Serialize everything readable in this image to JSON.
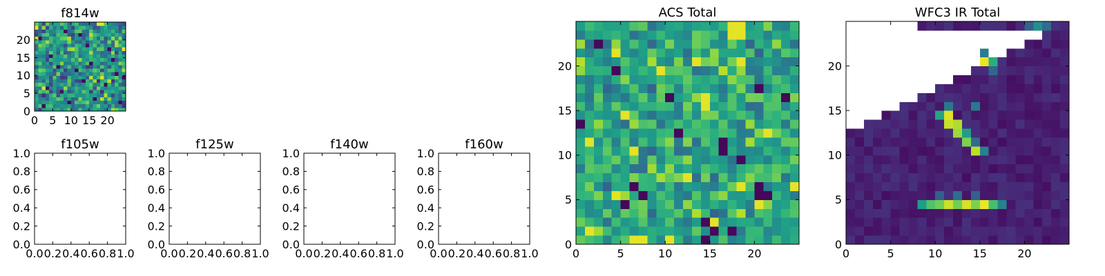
{
  "figure": {
    "background": "#ffffff",
    "colormap_name": "viridis",
    "empty_cell_color": "#ffffff"
  },
  "chart_data": [
    {
      "id": "f814w",
      "type": "heatmap",
      "title": "f814w",
      "size": [
        25,
        25
      ],
      "xlim": [
        0,
        25
      ],
      "ylim": [
        0,
        25
      ],
      "xticks": [
        0,
        5,
        10,
        15,
        20
      ],
      "yticks": [
        0,
        5,
        10,
        15,
        20
      ],
      "pattern": "noise",
      "seed": 814,
      "value_range": [
        0.1,
        0.95
      ],
      "bright_spots": [
        [
          17,
          24
        ],
        [
          18,
          24
        ],
        [
          24,
          17
        ],
        [
          0,
          23
        ]
      ],
      "dark_spots": [
        [
          13,
          8
        ],
        [
          7,
          5
        ],
        [
          16,
          3
        ],
        [
          4,
          15
        ],
        [
          1,
          20
        ],
        [
          11,
          11
        ],
        [
          22,
          10
        ],
        [
          15,
          13
        ],
        [
          20,
          17
        ],
        [
          9,
          2
        ],
        [
          3,
          6
        ],
        [
          24,
          9
        ],
        [
          12,
          21
        ],
        [
          19,
          7
        ],
        [
          6,
          12
        ],
        [
          23,
          2
        ],
        [
          2,
          1
        ],
        [
          14,
          18
        ],
        [
          8,
          22
        ],
        [
          21,
          14
        ]
      ]
    },
    {
      "id": "f105w",
      "type": "empty",
      "title": "f105w",
      "xlim": [
        0.0,
        1.0
      ],
      "ylim": [
        0.0,
        1.0
      ],
      "xticks": [
        "0.0",
        "0.2",
        "0.4",
        "0.6",
        "0.8",
        "1.0"
      ],
      "yticks": [
        "0.0",
        "0.2",
        "0.4",
        "0.6",
        "0.8",
        "1.0"
      ]
    },
    {
      "id": "f125w",
      "type": "empty",
      "title": "f125w",
      "xlim": [
        0.0,
        1.0
      ],
      "ylim": [
        0.0,
        1.0
      ],
      "xticks": [
        "0.0",
        "0.2",
        "0.4",
        "0.6",
        "0.8",
        "1.0"
      ],
      "yticks": [
        "0.0",
        "0.2",
        "0.4",
        "0.6",
        "0.8",
        "1.0"
      ]
    },
    {
      "id": "f140w",
      "type": "empty",
      "title": "f140w",
      "xlim": [
        0.0,
        1.0
      ],
      "ylim": [
        0.0,
        1.0
      ],
      "xticks": [
        "0.0",
        "0.2",
        "0.4",
        "0.6",
        "0.8",
        "1.0"
      ],
      "yticks": [
        "0.0",
        "0.2",
        "0.4",
        "0.6",
        "0.8",
        "1.0"
      ]
    },
    {
      "id": "f160w",
      "type": "empty",
      "title": "f160w",
      "xlim": [
        0.0,
        1.0
      ],
      "ylim": [
        0.0,
        1.0
      ],
      "xticks": [
        "0.0",
        "0.2",
        "0.4",
        "0.6",
        "0.8",
        "1.0"
      ],
      "yticks": [
        "0.0",
        "0.2",
        "0.4",
        "0.6",
        "0.8",
        "1.0"
      ]
    },
    {
      "id": "acs-total",
      "type": "heatmap",
      "title": "ACS Total",
      "size": [
        25,
        25
      ],
      "xlim": [
        0,
        25
      ],
      "ylim": [
        0,
        25
      ],
      "xticks": [
        0,
        5,
        10,
        15,
        20
      ],
      "yticks": [
        0,
        5,
        10,
        15,
        20
      ],
      "pattern": "noise",
      "seed": 2024,
      "value_range": [
        0.3,
        0.9
      ],
      "bright_spots": [
        [
          17,
          23
        ],
        [
          18,
          23
        ],
        [
          17,
          24
        ],
        [
          18,
          24
        ],
        [
          4,
          21
        ],
        [
          13,
          20
        ],
        [
          18,
          20
        ],
        [
          9,
          19
        ],
        [
          14,
          16
        ],
        [
          23,
          16
        ],
        [
          5,
          14
        ],
        [
          14,
          15
        ],
        [
          21,
          12
        ],
        [
          1,
          11
        ],
        [
          6,
          10
        ],
        [
          12,
          7
        ],
        [
          18,
          6
        ],
        [
          24,
          6
        ],
        [
          4,
          5
        ],
        [
          20,
          4
        ],
        [
          15,
          2
        ],
        [
          10,
          0
        ],
        [
          6,
          0
        ],
        [
          7,
          0
        ],
        [
          1,
          1
        ]
      ],
      "dark_spots": [
        [
          2,
          22
        ],
        [
          4,
          19
        ],
        [
          10,
          16
        ],
        [
          20,
          17
        ],
        [
          23,
          16
        ],
        [
          0,
          13
        ],
        [
          16,
          11
        ],
        [
          16,
          10
        ],
        [
          6,
          6
        ],
        [
          20,
          6
        ],
        [
          7,
          5
        ],
        [
          21,
          5
        ],
        [
          5,
          4
        ],
        [
          20,
          5
        ],
        [
          14,
          2
        ],
        [
          15,
          1
        ],
        [
          17,
          1
        ],
        [
          14,
          0
        ],
        [
          11,
          12
        ],
        [
          18,
          9
        ]
      ]
    },
    {
      "id": "wfc3-ir-total",
      "type": "heatmap",
      "title": "WFC3 IR Total",
      "size": [
        25,
        25
      ],
      "xlim": [
        0,
        25
      ],
      "ylim": [
        0,
        25
      ],
      "xticks": [
        0,
        5,
        10,
        15,
        20
      ],
      "yticks": [
        0,
        5,
        10,
        15,
        20
      ],
      "pattern": "diagonal_mask",
      "seed": 160,
      "background_range": [
        0.04,
        0.14
      ],
      "masked_region": "upper-left triangle (no data)",
      "features": [
        {
          "x": 15,
          "y": 20,
          "v": 0.97
        },
        {
          "x": 16,
          "y": 20,
          "v": 0.62
        },
        {
          "x": 15,
          "y": 21,
          "v": 0.42
        },
        {
          "x": 16,
          "y": 19,
          "v": 0.33
        },
        {
          "x": 10,
          "y": 14,
          "v": 0.58
        },
        {
          "x": 11,
          "y": 14,
          "v": 0.95
        },
        {
          "x": 11,
          "y": 13,
          "v": 0.92
        },
        {
          "x": 12,
          "y": 13,
          "v": 0.88
        },
        {
          "x": 12,
          "y": 12,
          "v": 0.85
        },
        {
          "x": 13,
          "y": 11,
          "v": 0.8
        },
        {
          "x": 13,
          "y": 12,
          "v": 0.55
        },
        {
          "x": 14,
          "y": 10,
          "v": 0.9
        },
        {
          "x": 15,
          "y": 10,
          "v": 0.45
        },
        {
          "x": 14,
          "y": 11,
          "v": 0.35
        },
        {
          "x": 11,
          "y": 15,
          "v": 0.4
        },
        {
          "x": 14,
          "y": 15,
          "v": 0.4
        },
        {
          "x": 8,
          "y": 4,
          "v": 0.55
        },
        {
          "x": 9,
          "y": 4,
          "v": 0.72
        },
        {
          "x": 10,
          "y": 4,
          "v": 0.78
        },
        {
          "x": 11,
          "y": 4,
          "v": 0.92
        },
        {
          "x": 12,
          "y": 4,
          "v": 0.78
        },
        {
          "x": 13,
          "y": 4,
          "v": 0.94
        },
        {
          "x": 14,
          "y": 4,
          "v": 0.8
        },
        {
          "x": 15,
          "y": 4,
          "v": 0.97
        },
        {
          "x": 16,
          "y": 4,
          "v": 0.7
        },
        {
          "x": 17,
          "y": 4,
          "v": 0.45
        },
        {
          "x": 10,
          "y": 5,
          "v": 0.3
        },
        {
          "x": 12,
          "y": 5,
          "v": 0.35
        },
        {
          "x": 14,
          "y": 5,
          "v": 0.3
        },
        {
          "x": 21,
          "y": 24,
          "v": 0.5
        },
        {
          "x": 22,
          "y": 24,
          "v": 0.35
        },
        {
          "x": 20,
          "y": 24,
          "v": 0.3
        }
      ]
    }
  ]
}
